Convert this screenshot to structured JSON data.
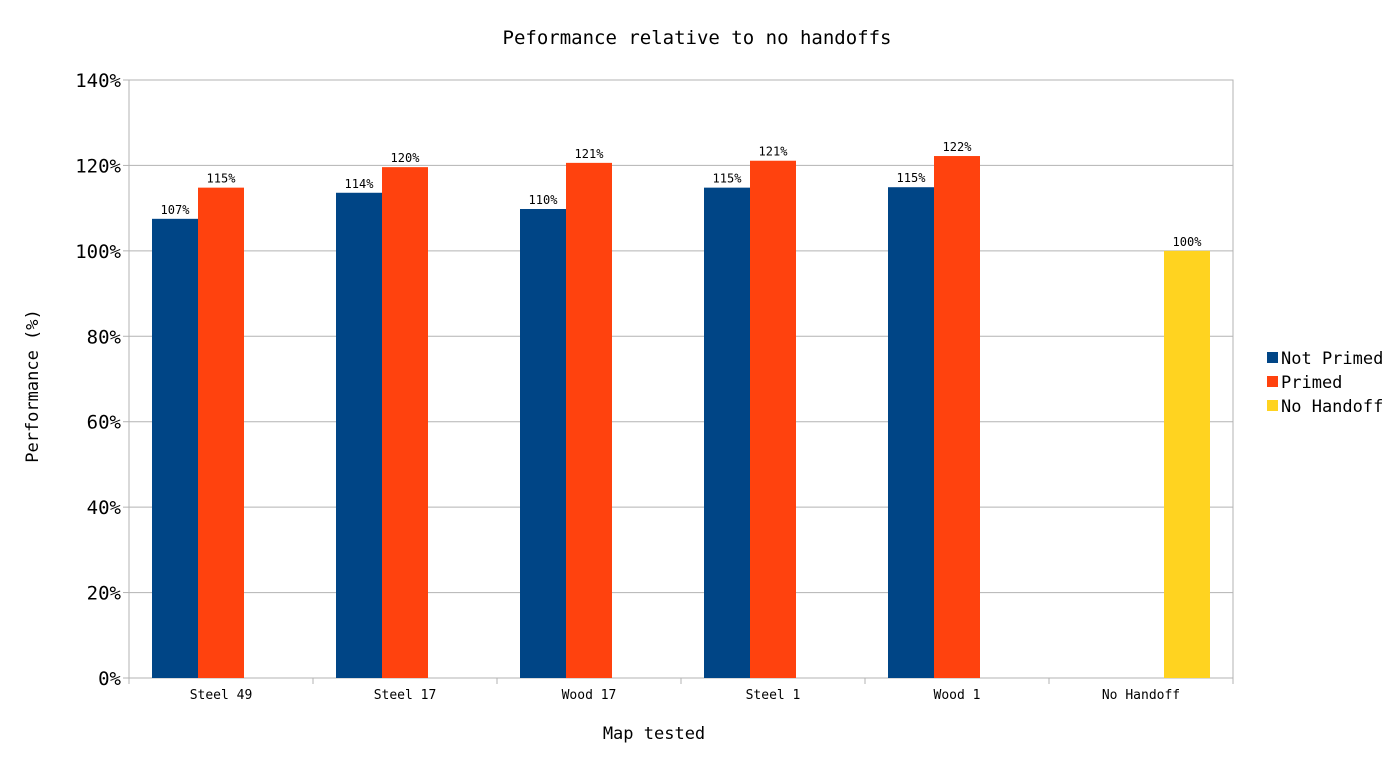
{
  "chart_data": {
    "type": "bar",
    "title": "Peformance relative to no handoffs",
    "xlabel": "Map tested",
    "ylabel": "Performance (%)",
    "ylim": [
      0,
      140
    ],
    "yticks": [
      "0%",
      "20%",
      "40%",
      "60%",
      "80%",
      "100%",
      "120%",
      "140%"
    ],
    "grid": true,
    "legend_position": "right",
    "categories": [
      "Steel 49",
      "Steel 17",
      "Wood 17",
      "Steel 1",
      "Wood 1",
      "No Handoff"
    ],
    "series": [
      {
        "name": "Not Primed",
        "color": "#004586",
        "values": [
          107.5,
          113.6,
          109.8,
          114.8,
          114.9,
          null
        ],
        "labels": [
          "107%",
          "114%",
          "110%",
          "115%",
          "115%",
          ""
        ]
      },
      {
        "name": "Primed",
        "color": "#ff420e",
        "values": [
          114.8,
          119.6,
          120.6,
          121.1,
          122.2,
          null
        ],
        "labels": [
          "115%",
          "120%",
          "121%",
          "121%",
          "122%",
          ""
        ]
      },
      {
        "name": "No Handoff",
        "color": "#ffd320",
        "values": [
          null,
          null,
          null,
          null,
          null,
          100
        ],
        "labels": [
          "",
          "",
          "",
          "",
          "",
          "100%"
        ]
      }
    ]
  }
}
